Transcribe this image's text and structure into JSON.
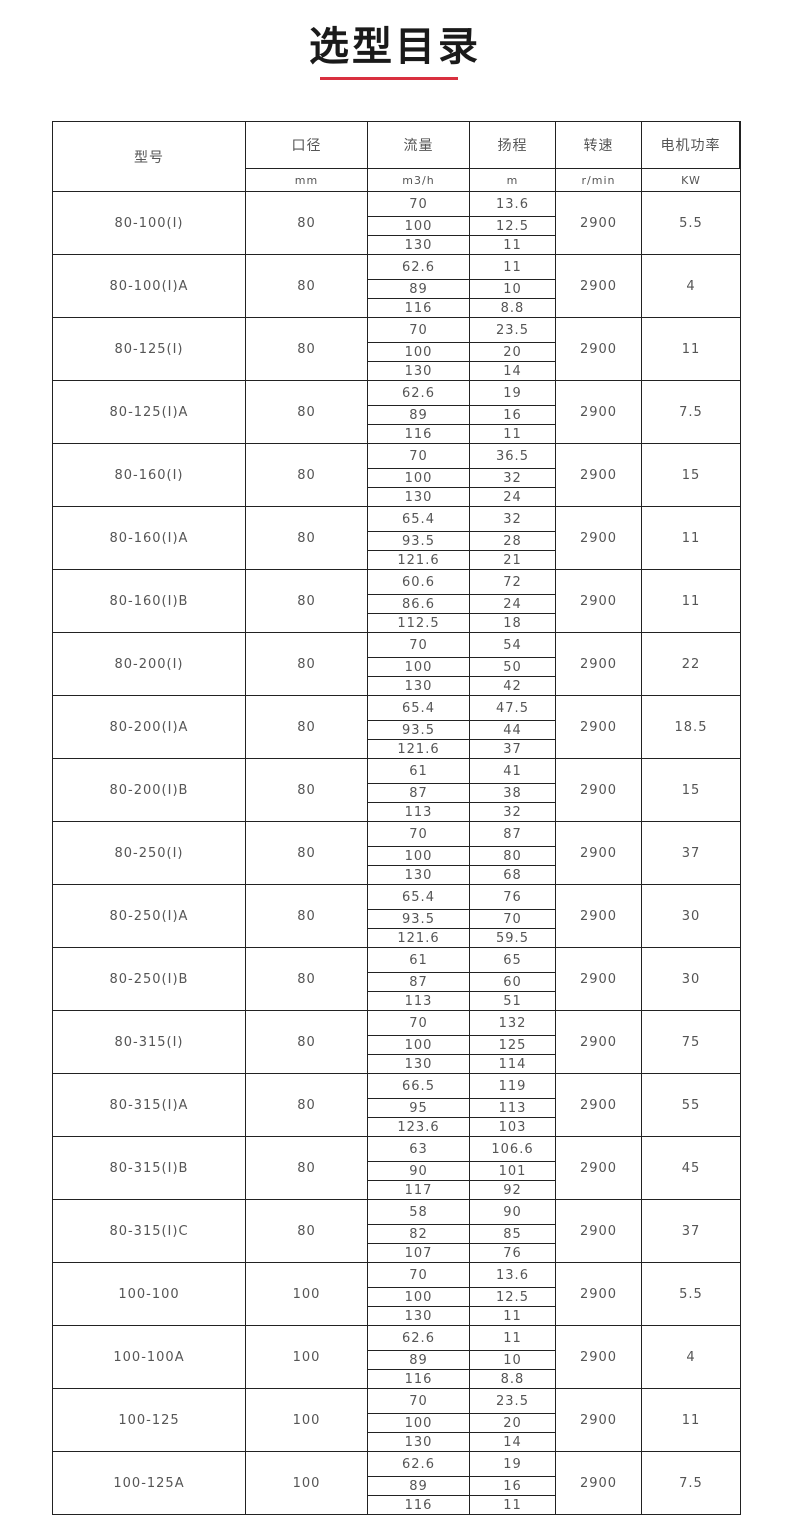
{
  "title": "选型目录",
  "header": {
    "model": "型号",
    "diameter": "口径",
    "diameter_unit": "mm",
    "flow": "流量",
    "flow_unit": "m3/h",
    "head": "扬程",
    "head_unit": "m",
    "speed": "转速",
    "speed_unit": "r/min",
    "power": "电机功率",
    "power_unit": "KW"
  },
  "rows": [
    {
      "model": "80-100(I)",
      "diameter": "80",
      "flow": [
        "70",
        "100",
        "130"
      ],
      "head": [
        "13.6",
        "12.5",
        "11"
      ],
      "speed": "2900",
      "power": "5.5"
    },
    {
      "model": "80-100(I)A",
      "diameter": "80",
      "flow": [
        "62.6",
        "89",
        "116"
      ],
      "head": [
        "11",
        "10",
        "8.8"
      ],
      "speed": "2900",
      "power": "4"
    },
    {
      "model": "80-125(I)",
      "diameter": "80",
      "flow": [
        "70",
        "100",
        "130"
      ],
      "head": [
        "23.5",
        "20",
        "14"
      ],
      "speed": "2900",
      "power": "11"
    },
    {
      "model": "80-125(I)A",
      "diameter": "80",
      "flow": [
        "62.6",
        "89",
        "116"
      ],
      "head": [
        "19",
        "16",
        "11"
      ],
      "speed": "2900",
      "power": "7.5"
    },
    {
      "model": "80-160(I)",
      "diameter": "80",
      "flow": [
        "70",
        "100",
        "130"
      ],
      "head": [
        "36.5",
        "32",
        "24"
      ],
      "speed": "2900",
      "power": "15"
    },
    {
      "model": "80-160(I)A",
      "diameter": "80",
      "flow": [
        "65.4",
        "93.5",
        "121.6"
      ],
      "head": [
        "32",
        "28",
        "21"
      ],
      "speed": "2900",
      "power": "11"
    },
    {
      "model": "80-160(I)B",
      "diameter": "80",
      "flow": [
        "60.6",
        "86.6",
        "112.5"
      ],
      "head": [
        "72",
        "24",
        "18"
      ],
      "speed": "2900",
      "power": "11"
    },
    {
      "model": "80-200(I)",
      "diameter": "80",
      "flow": [
        "70",
        "100",
        "130"
      ],
      "head": [
        "54",
        "50",
        "42"
      ],
      "speed": "2900",
      "power": "22"
    },
    {
      "model": "80-200(I)A",
      "diameter": "80",
      "flow": [
        "65.4",
        "93.5",
        "121.6"
      ],
      "head": [
        "47.5",
        "44",
        "37"
      ],
      "speed": "2900",
      "power": "18.5"
    },
    {
      "model": "80-200(I)B",
      "diameter": "80",
      "flow": [
        "61",
        "87",
        "113"
      ],
      "head": [
        "41",
        "38",
        "32"
      ],
      "speed": "2900",
      "power": "15"
    },
    {
      "model": "80-250(I)",
      "diameter": "80",
      "flow": [
        "70",
        "100",
        "130"
      ],
      "head": [
        "87",
        "80",
        "68"
      ],
      "speed": "2900",
      "power": "37"
    },
    {
      "model": "80-250(I)A",
      "diameter": "80",
      "flow": [
        "65.4",
        "93.5",
        "121.6"
      ],
      "head": [
        "76",
        "70",
        "59.5"
      ],
      "speed": "2900",
      "power": "30"
    },
    {
      "model": "80-250(I)B",
      "diameter": "80",
      "flow": [
        "61",
        "87",
        "113"
      ],
      "head": [
        "65",
        "60",
        "51"
      ],
      "speed": "2900",
      "power": "30"
    },
    {
      "model": "80-315(I)",
      "diameter": "80",
      "flow": [
        "70",
        "100",
        "130"
      ],
      "head": [
        "132",
        "125",
        "114"
      ],
      "speed": "2900",
      "power": "75"
    },
    {
      "model": "80-315(I)A",
      "diameter": "80",
      "flow": [
        "66.5",
        "95",
        "123.6"
      ],
      "head": [
        "119",
        "113",
        "103"
      ],
      "speed": "2900",
      "power": "55"
    },
    {
      "model": "80-315(I)B",
      "diameter": "80",
      "flow": [
        "63",
        "90",
        "117"
      ],
      "head": [
        "106.6",
        "101",
        "92"
      ],
      "speed": "2900",
      "power": "45"
    },
    {
      "model": "80-315(I)C",
      "diameter": "80",
      "flow": [
        "58",
        "82",
        "107"
      ],
      "head": [
        "90",
        "85",
        "76"
      ],
      "speed": "2900",
      "power": "37"
    },
    {
      "model": "100-100",
      "diameter": "100",
      "flow": [
        "70",
        "100",
        "130"
      ],
      "head": [
        "13.6",
        "12.5",
        "11"
      ],
      "speed": "2900",
      "power": "5.5"
    },
    {
      "model": "100-100A",
      "diameter": "100",
      "flow": [
        "62.6",
        "89",
        "116"
      ],
      "head": [
        "11",
        "10",
        "8.8"
      ],
      "speed": "2900",
      "power": "4"
    },
    {
      "model": "100-125",
      "diameter": "100",
      "flow": [
        "70",
        "100",
        "130"
      ],
      "head": [
        "23.5",
        "20",
        "14"
      ],
      "speed": "2900",
      "power": "11"
    },
    {
      "model": "100-125A",
      "diameter": "100",
      "flow": [
        "62.6",
        "89",
        "116"
      ],
      "head": [
        "19",
        "16",
        "11"
      ],
      "speed": "2900",
      "power": "7.5"
    }
  ]
}
